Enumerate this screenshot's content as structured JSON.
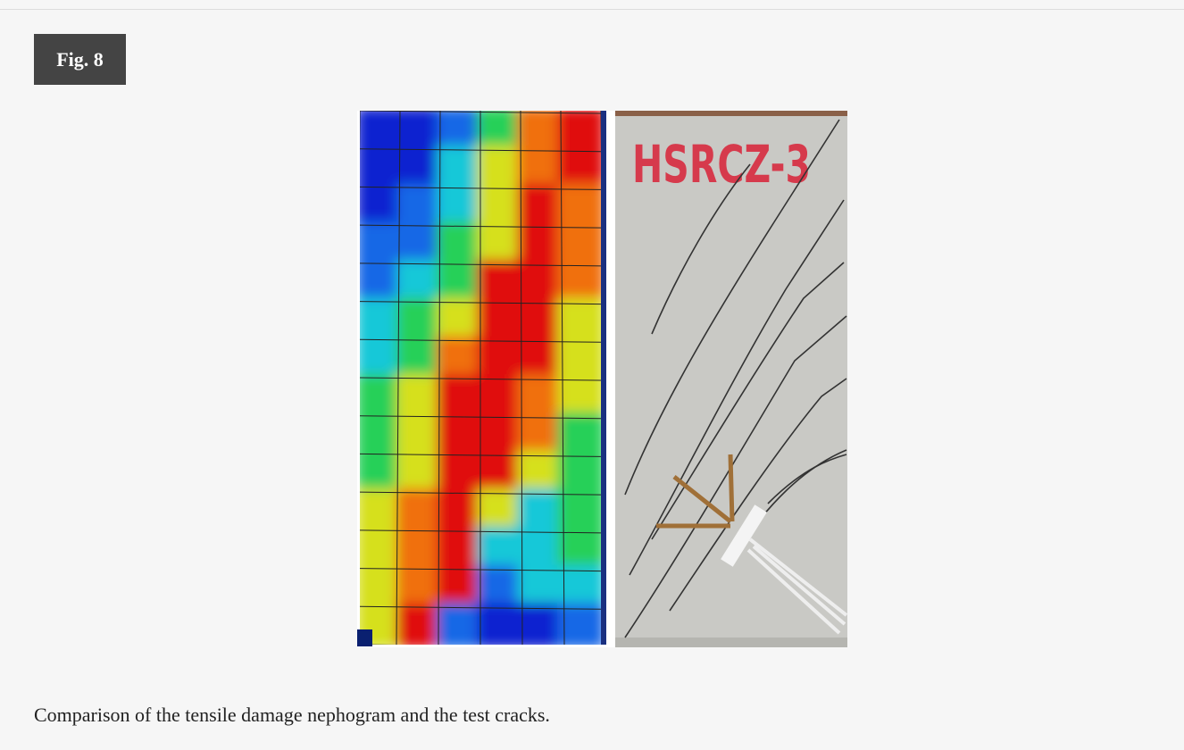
{
  "figure": {
    "label": "Fig. 8",
    "image_text": "HSRCZ-3",
    "caption": "Comparison of the tensile damage nephogram and the test cracks."
  }
}
